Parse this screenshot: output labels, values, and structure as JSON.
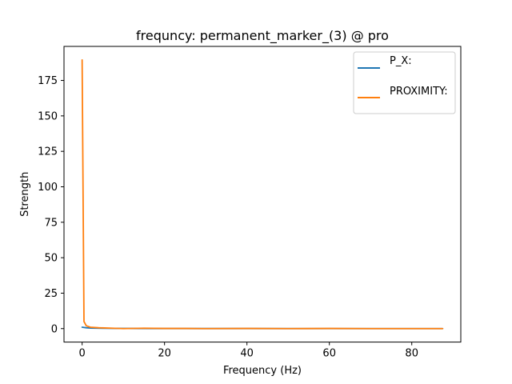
{
  "chart_data": {
    "type": "line",
    "title": "frequncy: permanent_marker_(3) @ pro",
    "xlabel": "Frequency (Hz)",
    "ylabel": "Strength",
    "xlim": [
      -4.4,
      91.9
    ],
    "ylim": [
      -9.5,
      199
    ],
    "xticks": [
      0,
      20,
      40,
      60,
      80
    ],
    "yticks": [
      0,
      25,
      50,
      75,
      100,
      125,
      150,
      175
    ],
    "grid": false,
    "legend_position": "top-right",
    "series": [
      {
        "name": "P_X:",
        "color": "#1f77b4",
        "points": [
          [
            0,
            1.0
          ],
          [
            0.5,
            0.8
          ],
          [
            1,
            0.6
          ],
          [
            2,
            0.4
          ],
          [
            5,
            0.2
          ],
          [
            10,
            0.1
          ],
          [
            20,
            0.05
          ],
          [
            40,
            0.03
          ],
          [
            60,
            0.02
          ],
          [
            87.5,
            0.02
          ]
        ]
      },
      {
        "name": "PROXIMITY:",
        "color": "#ff7f0e",
        "points": [
          [
            0,
            189.5
          ],
          [
            0.45,
            5.0
          ],
          [
            1,
            2.0
          ],
          [
            2,
            1.0
          ],
          [
            4,
            0.6
          ],
          [
            8,
            0.2
          ],
          [
            10,
            0.0
          ],
          [
            15,
            0.3
          ],
          [
            20,
            0.1
          ],
          [
            25,
            0.1
          ],
          [
            30,
            0.0
          ],
          [
            40,
            0.1
          ],
          [
            50,
            0.0
          ],
          [
            60,
            0.1
          ],
          [
            70,
            0.0
          ],
          [
            80,
            0.0
          ],
          [
            87.5,
            0.0
          ]
        ]
      }
    ]
  }
}
